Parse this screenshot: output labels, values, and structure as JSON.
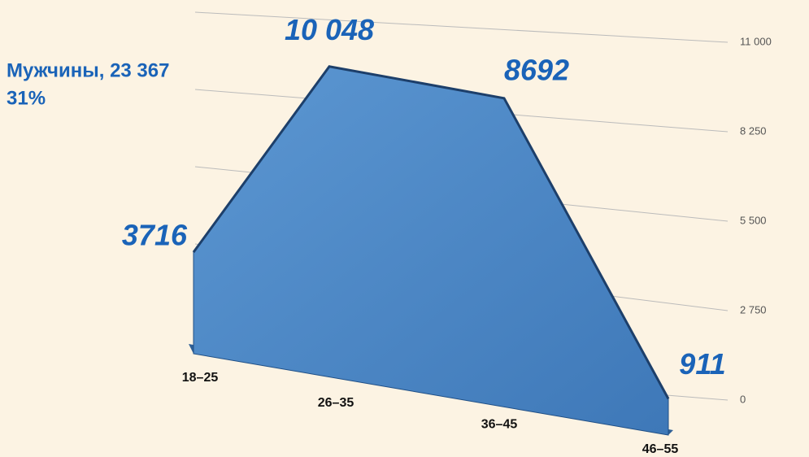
{
  "chart_data": {
    "type": "area",
    "title": "Мужчины, 23 367",
    "subtitle": "31%",
    "categories": [
      "18–25",
      "26–35",
      "36–45",
      "46–55"
    ],
    "values": [
      3716,
      10048,
      8692,
      911
    ],
    "value_labels": [
      "3716",
      "10 048",
      "8692",
      "911"
    ],
    "color": "#4a86c6",
    "ylim": [
      0,
      11000
    ],
    "yticks": [
      0,
      {
        "value": 2750,
        "label": "2 750"
      },
      {
        "value": 5500,
        "label": "5 500"
      },
      {
        "value": 8250,
        "label": "8 250"
      },
      {
        "value": 11000,
        "label": "11 000"
      }
    ],
    "grid": true
  }
}
